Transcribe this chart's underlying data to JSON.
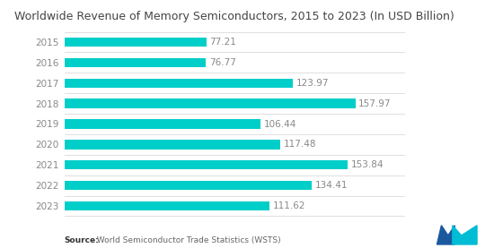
{
  "title": "Worldwide Revenue of Memory Semiconductors, 2015 to 2023 (In USD Billion)",
  "years": [
    "2015",
    "2016",
    "2017",
    "2018",
    "2019",
    "2020",
    "2021",
    "2022",
    "2023"
  ],
  "values": [
    77.21,
    76.77,
    123.97,
    157.97,
    106.44,
    117.48,
    153.84,
    134.41,
    111.62
  ],
  "bar_color": "#00CEC9",
  "background_color": "#ffffff",
  "title_fontsize": 9.0,
  "label_fontsize": 7.5,
  "tick_fontsize": 7.5,
  "source_bold": "Source:",
  "source_rest": "  World Semiconductor Trade Statistics (WSTS)",
  "xlim": [
    0,
    185
  ],
  "bar_height": 0.45,
  "separator_color": "#e0e0e0",
  "tick_color": "#888888",
  "label_color": "#888888"
}
